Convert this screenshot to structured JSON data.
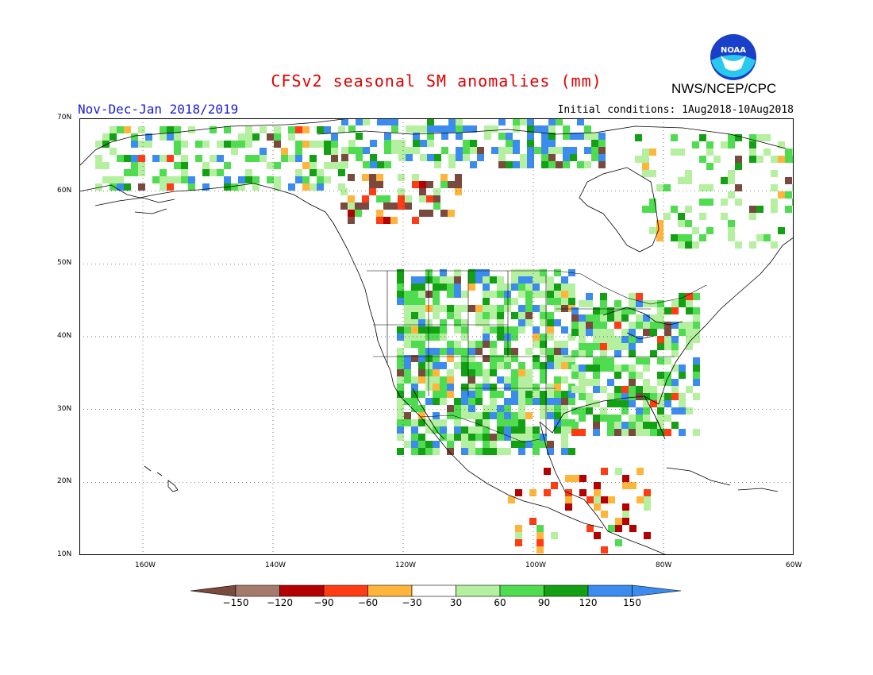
{
  "header": {
    "title": "CFSv2 seasonal SM anomalies (mm)",
    "season": "Nov-Dec-Jan 2018/2019",
    "initial_conditions": "Initial conditions: 1Aug2018-10Aug2018",
    "agency": "NWS/NCEP/CPC",
    "logo_text": "NOAA"
  },
  "map": {
    "lat_labels": [
      "70N",
      "60N",
      "50N",
      "40N",
      "30N",
      "20N",
      "10N"
    ],
    "lon_labels": [
      "160W",
      "140W",
      "120W",
      "100W",
      "80W",
      "60W"
    ],
    "lat_range": [
      10,
      70
    ],
    "lon_range": [
      -170,
      -60
    ]
  },
  "colorbar": {
    "labels": [
      "-150",
      "-120",
      "-90",
      "-60",
      "-30",
      "30",
      "60",
      "90",
      "120",
      "150"
    ],
    "colors": [
      "#7b4a3e",
      "#a57a6d",
      "#b40000",
      "#ff3c14",
      "#ffb43c",
      "#ffffff",
      "#b4f0a0",
      "#50dc50",
      "#14a014",
      "#3c8cf0",
      "#3c8cf0"
    ],
    "end_left_color": "#7b4a3e",
    "end_right_color": "#3c8cf0"
  }
}
